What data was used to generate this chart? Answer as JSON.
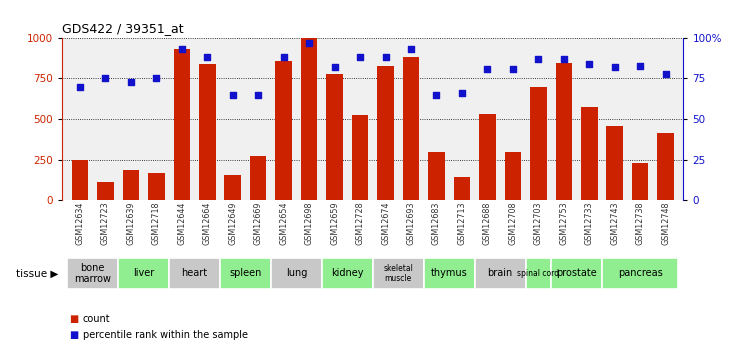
{
  "title": "GDS422 / 39351_at",
  "samples": [
    "GSM12634",
    "GSM12723",
    "GSM12639",
    "GSM12718",
    "GSM12644",
    "GSM12664",
    "GSM12649",
    "GSM12669",
    "GSM12654",
    "GSM12698",
    "GSM12659",
    "GSM12728",
    "GSM12674",
    "GSM12693",
    "GSM12683",
    "GSM12713",
    "GSM12688",
    "GSM12708",
    "GSM12703",
    "GSM12753",
    "GSM12733",
    "GSM12743",
    "GSM12738",
    "GSM12748"
  ],
  "counts": [
    245,
    110,
    185,
    170,
    930,
    840,
    155,
    275,
    860,
    1000,
    780,
    525,
    830,
    880,
    295,
    145,
    530,
    295,
    700,
    845,
    575,
    460,
    230,
    415
  ],
  "percentiles": [
    70,
    75,
    73,
    75,
    93,
    88,
    65,
    65,
    88,
    97,
    82,
    88,
    88,
    93,
    65,
    66,
    81,
    81,
    87,
    87,
    84,
    82,
    83,
    78
  ],
  "tissue_names": [
    "bone\nmarrow",
    "liver",
    "heart",
    "spleen",
    "lung",
    "kidney",
    "skeletal\nmuscle",
    "thymus",
    "brain",
    "spinal cord",
    "prostate",
    "pancreas"
  ],
  "tissue_indices": [
    [
      0,
      1
    ],
    [
      2,
      3
    ],
    [
      4,
      5
    ],
    [
      6,
      7
    ],
    [
      8,
      9
    ],
    [
      10,
      11
    ],
    [
      12,
      13
    ],
    [
      14,
      15
    ],
    [
      16,
      17
    ],
    [
      18
    ],
    [
      19,
      20
    ],
    [
      21,
      22,
      23
    ]
  ],
  "tissue_colors": [
    "#c8c8c8",
    "#90ee90",
    "#c8c8c8",
    "#90ee90",
    "#c8c8c8",
    "#90ee90",
    "#c8c8c8",
    "#90ee90",
    "#c8c8c8",
    "#90ee90",
    "#90ee90",
    "#90ee90"
  ],
  "bar_color": "#cc2200",
  "dot_color": "#1111cc",
  "ylim_left": [
    0,
    1000
  ],
  "ylim_right": [
    0,
    100
  ],
  "yticks_left": [
    0,
    250,
    500,
    750,
    1000
  ],
  "yticks_right": [
    0,
    25,
    50,
    75,
    100
  ],
  "background_color": "#ffffff",
  "xtick_bg": "#e0e0e0"
}
